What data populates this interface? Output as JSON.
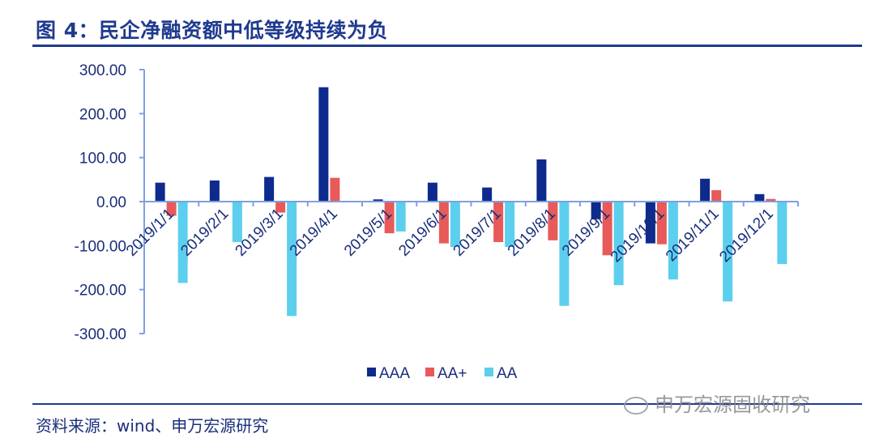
{
  "header": {
    "title": "图 4：民企净融资额中低等级持续为负"
  },
  "footer": {
    "source": "资料来源：wind、申万宏源研究",
    "watermark": "申万宏源固收研究"
  },
  "colors": {
    "AAA": "#0d2a8c",
    "AA+": "#e85a5a",
    "AA": "#5ccfee",
    "axis": "#7f9fdf",
    "text": "#1a2e7a"
  },
  "chart_data": {
    "type": "bar",
    "categories": [
      "2019/1/1",
      "2019/2/1",
      "2019/3/1",
      "2019/4/1",
      "2019/5/1",
      "2019/6/1",
      "2019/7/1",
      "2019/8/1",
      "2019/9/1",
      "2019/10/1",
      "2019/11/1",
      "2019/12/1"
    ],
    "series": [
      {
        "name": "AAA",
        "values": [
          43,
          48,
          56,
          260,
          5,
          43,
          32,
          96,
          -40,
          -95,
          52,
          17
        ]
      },
      {
        "name": "AA+",
        "values": [
          -32,
          0,
          -25,
          54,
          -72,
          -95,
          -92,
          -88,
          -122,
          -97,
          26,
          6
        ]
      },
      {
        "name": "AA",
        "values": [
          -185,
          -92,
          -260,
          0,
          -68,
          -103,
          -103,
          -237,
          -190,
          -177,
          -227,
          -142
        ]
      }
    ],
    "ylim": [
      -300,
      300
    ],
    "yticks": [
      "300.00",
      "200.00",
      "100.00",
      "0.00",
      "-100.00",
      "-200.00",
      "-300.00"
    ],
    "legend_position": "bottom",
    "grid": false
  }
}
